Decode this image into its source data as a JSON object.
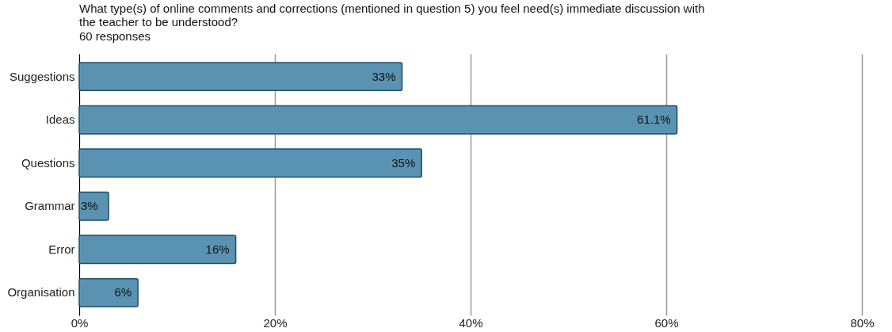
{
  "chart_data": {
    "type": "bar",
    "orientation": "horizontal",
    "title": "What type(s) of online comments and corrections (mentioned in question 5) you feel need(s) immediate discussion with the teacher to be understood?",
    "subtitle": "60 responses",
    "categories": [
      "Suggestions",
      "Ideas",
      "Questions",
      "Grammar",
      "Error",
      "Organisation"
    ],
    "values": [
      33,
      61.1,
      35,
      3,
      16,
      6
    ],
    "value_labels": [
      "33%",
      "61.1%",
      "35%",
      "3%",
      "16%",
      "6%"
    ],
    "color": "#5a93b2",
    "xlim": [
      0,
      80
    ],
    "xticks": [
      {
        "value": 0,
        "label": "0%"
      },
      {
        "value": 20,
        "label": "20%"
      },
      {
        "value": 40,
        "label": "40%"
      },
      {
        "value": 60,
        "label": "60%"
      },
      {
        "value": 80,
        "label": "80%"
      }
    ],
    "grid": "x"
  }
}
